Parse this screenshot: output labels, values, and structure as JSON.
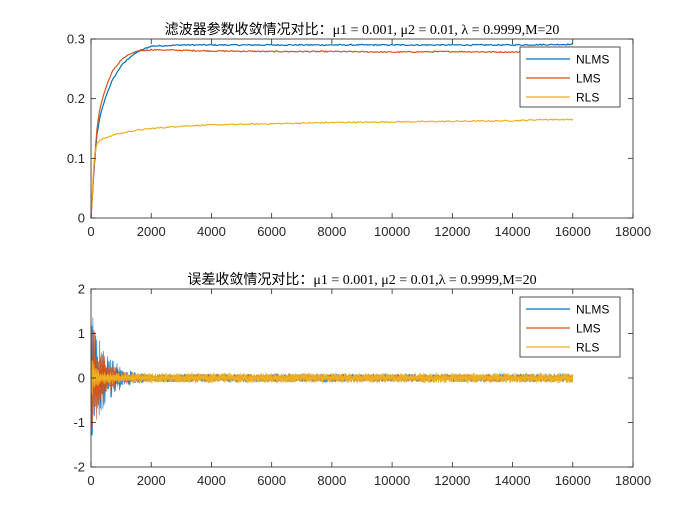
{
  "colors": {
    "NLMS": "#0072bd",
    "LMS": "#d95319",
    "RLS": "#edb120",
    "axis": "#262626",
    "background": "#ffffff"
  },
  "chart_data": [
    {
      "type": "line",
      "title": "滤波器参数收敛情况对比：μ1 = 0.001, μ2 = 0.01, λ = 0.9999,M=20",
      "xlabel": "",
      "ylabel": "",
      "xlim": [
        0,
        18000
      ],
      "ylim": [
        0,
        0.3
      ],
      "xticks": [
        0,
        2000,
        4000,
        6000,
        8000,
        10000,
        12000,
        14000,
        16000,
        18000
      ],
      "yticks": [
        0,
        0.1,
        0.2,
        0.3
      ],
      "xtick_labels": [
        "0",
        "2000",
        "4000",
        "6000",
        "8000",
        "10000",
        "12000",
        "14000",
        "16000",
        "18000"
      ],
      "ytick_labels": [
        "0",
        "0.1",
        "0.2",
        "0.3"
      ],
      "legend": {
        "position": "top-right",
        "entries": [
          "NLMS",
          "LMS",
          "RLS"
        ]
      },
      "grid": false,
      "series": [
        {
          "name": "NLMS",
          "x": [
            0,
            100,
            200,
            300,
            500,
            700,
            1000,
            1300,
            1600,
            2000,
            3000,
            4000,
            6000,
            8000,
            10000,
            12000,
            14000,
            16000
          ],
          "values": [
            0,
            0.08,
            0.14,
            0.17,
            0.205,
            0.23,
            0.255,
            0.27,
            0.28,
            0.288,
            0.29,
            0.29,
            0.29,
            0.29,
            0.29,
            0.29,
            0.29,
            0.291
          ]
        },
        {
          "name": "LMS",
          "x": [
            0,
            100,
            200,
            300,
            500,
            700,
            1000,
            1300,
            1600,
            2000,
            3000,
            4000,
            6000,
            8000,
            10000,
            12000,
            14000,
            16000
          ],
          "values": [
            0,
            0.085,
            0.15,
            0.185,
            0.22,
            0.245,
            0.265,
            0.275,
            0.28,
            0.282,
            0.281,
            0.28,
            0.279,
            0.279,
            0.278,
            0.279,
            0.278,
            0.279
          ]
        },
        {
          "name": "RLS",
          "x": [
            0,
            100,
            200,
            300,
            500,
            800,
            1000,
            1500,
            2000,
            3000,
            4000,
            6000,
            8000,
            10000,
            12000,
            14000,
            15000,
            16000
          ],
          "values": [
            0,
            0.1,
            0.125,
            0.13,
            0.135,
            0.14,
            0.142,
            0.147,
            0.15,
            0.154,
            0.156,
            0.158,
            0.16,
            0.161,
            0.162,
            0.163,
            0.165,
            0.165
          ]
        }
      ]
    },
    {
      "type": "line",
      "title": "误差收敛情况对比：μ1 = 0.001, μ2 = 0.01,λ = 0.9999,M=20",
      "xlabel": "",
      "ylabel": "",
      "xlim": [
        0,
        18000
      ],
      "ylim": [
        -2,
        2
      ],
      "xticks": [
        0,
        2000,
        4000,
        6000,
        8000,
        10000,
        12000,
        14000,
        16000,
        18000
      ],
      "yticks": [
        -2,
        -1,
        0,
        1,
        2
      ],
      "xtick_labels": [
        "0",
        "2000",
        "4000",
        "6000",
        "8000",
        "10000",
        "12000",
        "14000",
        "16000",
        "18000"
      ],
      "ytick_labels": [
        "-2",
        "-1",
        "0",
        "1",
        "2"
      ],
      "legend": {
        "position": "top-right",
        "entries": [
          "NLMS",
          "LMS",
          "RLS"
        ]
      },
      "grid": false,
      "series": [
        {
          "name": "NLMS",
          "x": [
            0,
            200,
            500,
            1000,
            1500,
            2000,
            16000
          ],
          "values_upper": [
            1.6,
            1.0,
            0.6,
            0.25,
            0.12,
            0.1,
            0.1
          ],
          "values_lower": [
            -1.6,
            -1.0,
            -0.6,
            -0.25,
            -0.12,
            -0.1,
            -0.1
          ]
        },
        {
          "name": "LMS",
          "x": [
            0,
            200,
            500,
            1000,
            1500,
            2000,
            16000
          ],
          "values_upper": [
            1.4,
            0.9,
            0.45,
            0.15,
            0.1,
            0.09,
            0.09
          ],
          "values_lower": [
            -1.4,
            -0.9,
            -0.45,
            -0.15,
            -0.1,
            -0.09,
            -0.09
          ]
        },
        {
          "name": "RLS",
          "x": [
            0,
            100,
            300,
            1000,
            2000,
            16000
          ],
          "values_upper": [
            0.8,
            0.3,
            0.15,
            0.12,
            0.12,
            0.12
          ],
          "values_lower": [
            -0.8,
            -0.3,
            -0.15,
            -0.12,
            -0.12,
            -0.12
          ]
        }
      ]
    }
  ]
}
